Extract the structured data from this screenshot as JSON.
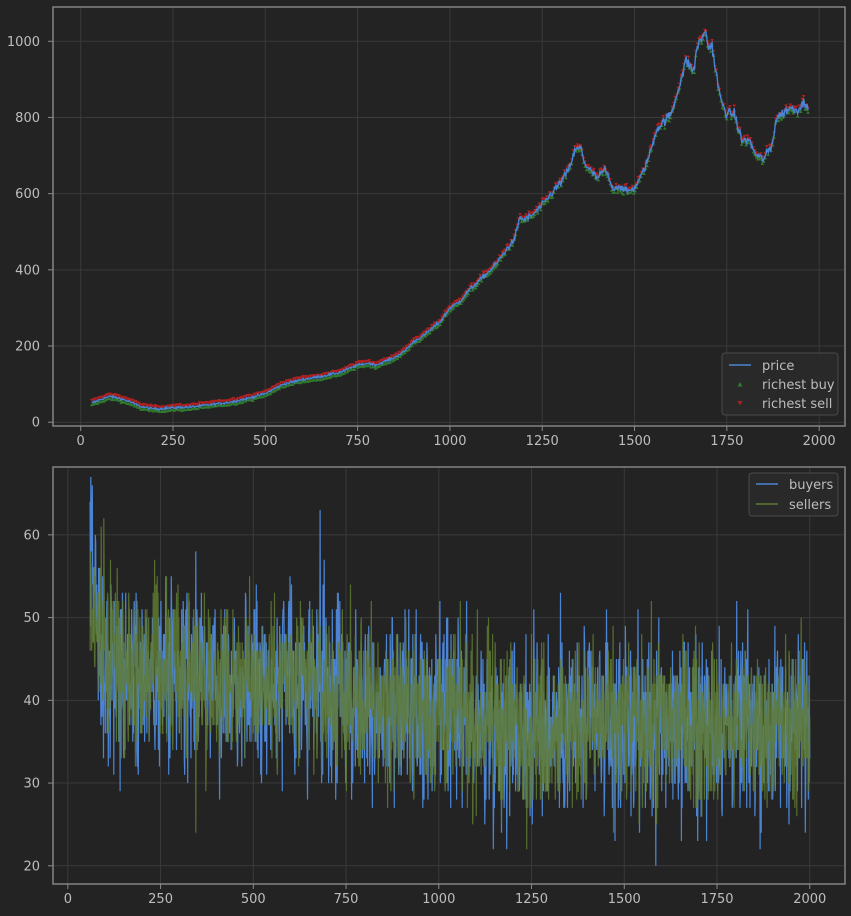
{
  "colors": {
    "background": "#232323",
    "axes_face": "#232323",
    "spine": "#8a8a8a",
    "grid": "#3a3a3a",
    "tick_text": "#bdbdbd",
    "price": "#4c84d4",
    "richest_buy": "#2f7a2f",
    "richest_sell": "#b02020",
    "buyers": "#4c84d4",
    "sellers": "#5f7a33",
    "overlap": "#6a9a95"
  },
  "chart_data": [
    {
      "type": "line",
      "xlim": [
        -75,
        2070
      ],
      "ylim": [
        -10,
        1090
      ],
      "xticks": [
        0,
        250,
        500,
        750,
        1000,
        1250,
        1500,
        1750,
        2000
      ],
      "yticks": [
        0,
        200,
        400,
        600,
        800,
        1000
      ],
      "grid": true,
      "legend_position": "bottom-right",
      "legend": [
        "price",
        "richest buy",
        "richest sell"
      ],
      "series": [
        {
          "name": "price",
          "x": [
            30,
            60,
            80,
            100,
            130,
            160,
            190,
            210,
            250,
            300,
            350,
            400,
            450,
            500,
            525,
            550,
            600,
            650,
            700,
            750,
            780,
            800,
            850,
            875,
            900,
            925,
            950,
            975,
            1000,
            1025,
            1050,
            1100,
            1125,
            1150,
            1175,
            1190,
            1200,
            1225,
            1250,
            1275,
            1300,
            1320,
            1340,
            1355,
            1365,
            1380,
            1400,
            1420,
            1440,
            1460,
            1480,
            1500,
            1520,
            1540,
            1560,
            1580,
            1600,
            1620,
            1640,
            1660,
            1670,
            1680,
            1690,
            1700,
            1710,
            1720,
            1735,
            1750,
            1770,
            1790,
            1810,
            1830,
            1850,
            1860,
            1870,
            1885,
            1900,
            1920,
            1940,
            1960,
            1970
          ],
          "y": [
            50,
            62,
            68,
            64,
            55,
            42,
            36,
            35,
            38,
            40,
            46,
            52,
            62,
            75,
            88,
            100,
            112,
            120,
            130,
            150,
            155,
            150,
            170,
            185,
            210,
            225,
            245,
            265,
            300,
            315,
            345,
            390,
            415,
            450,
            480,
            540,
            530,
            545,
            570,
            600,
            630,
            660,
            715,
            720,
            680,
            660,
            640,
            665,
            615,
            620,
            605,
            615,
            650,
            700,
            770,
            790,
            810,
            880,
            950,
            920,
            990,
            1000,
            1030,
            985,
            990,
            920,
            840,
            810,
            810,
            740,
            740,
            700,
            690,
            710,
            720,
            800,
            810,
            825,
            820,
            840,
            835
          ]
        },
        {
          "name": "richest buy"
        },
        {
          "name": "richest sell"
        }
      ]
    },
    {
      "type": "line",
      "xlim": [
        -40,
        2095
      ],
      "ylim": [
        17.8,
        68.2
      ],
      "xticks": [
        0,
        250,
        500,
        750,
        1000,
        1250,
        1500,
        1750,
        2000
      ],
      "yticks": [
        20,
        30,
        40,
        50,
        60
      ],
      "grid": true,
      "legend_position": "top-right",
      "legend": [
        "buyers",
        "sellers"
      ],
      "x_range": [
        60,
        2000
      ],
      "series": [
        {
          "name": "buyers",
          "mean_trend": {
            "x": [
              60,
              100,
              200,
              400,
              600,
              800,
              1000,
              1200,
              1400,
              1600,
              1800,
              2000
            ],
            "y": [
              57,
              44,
              43,
              43,
              42,
              40,
              38,
              37,
              37,
              37,
              37,
              37
            ]
          },
          "spread": 5.5,
          "peaks": [
            {
              "x": 66,
              "y": 66
            },
            {
              "x": 680,
              "y": 63
            },
            {
              "x": 1585,
              "y": 20
            }
          ]
        },
        {
          "name": "sellers",
          "mean_trend": {
            "x": [
              60,
              100,
              200,
              400,
              600,
              800,
              1000,
              1200,
              1400,
              1600,
              1800,
              2000
            ],
            "y": [
              52,
              46,
              44,
              43,
              42,
              40,
              38,
              37,
              37,
              37,
              37,
              37
            ]
          },
          "spread": 5.0,
          "peaks": [
            {
              "x": 90,
              "y": 61
            },
            {
              "x": 345,
              "y": 24
            }
          ]
        }
      ]
    }
  ]
}
